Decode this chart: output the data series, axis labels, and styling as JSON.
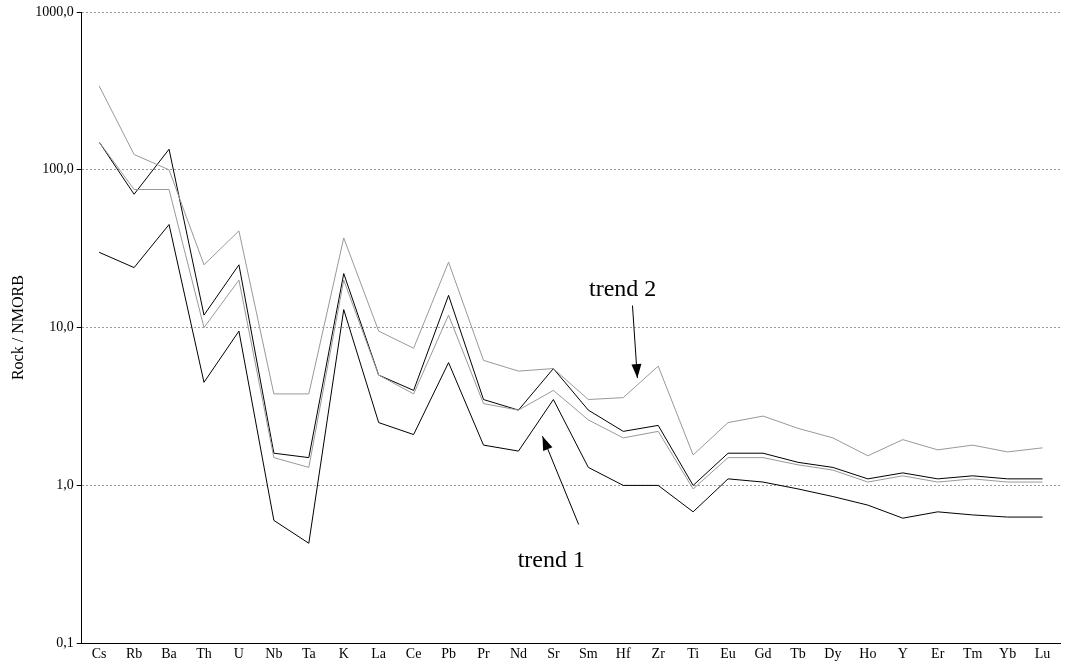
{
  "chart_data": {
    "type": "line",
    "ylabel": "Rock / NMORB",
    "categories": [
      "Cs",
      "Rb",
      "Ba",
      "Th",
      "U",
      "Nb",
      "Ta",
      "K",
      "La",
      "Ce",
      "Pb",
      "Pr",
      "Nd",
      "Sr",
      "Sm",
      "Hf",
      "Zr",
      "Ti",
      "Eu",
      "Gd",
      "Tb",
      "Dy",
      "Ho",
      "Y",
      "Er",
      "Tm",
      "Yb",
      "Lu"
    ],
    "series": [
      {
        "color": "#999999",
        "values": [
          340,
          125,
          100,
          25,
          41,
          3.8,
          3.8,
          37,
          9.5,
          7.4,
          26,
          6.2,
          5.3,
          5.5,
          3.5,
          3.6,
          5.7,
          1.56,
          2.5,
          2.75,
          2.3,
          2.0,
          1.54,
          1.95,
          1.68,
          1.8,
          1.63,
          1.73
        ]
      },
      {
        "color": "#999999",
        "values": [
          150,
          75,
          75,
          10,
          20,
          1.5,
          1.3,
          20,
          5,
          3.8,
          12,
          3.3,
          3.0,
          4.0,
          2.6,
          2.0,
          2.2,
          0.95,
          1.5,
          1.5,
          1.35,
          1.25,
          1.05,
          1.15,
          1.05,
          1.1,
          1.05,
          1.05
        ]
      },
      {
        "color": "#000000",
        "values": [
          150,
          70,
          135,
          12,
          25,
          1.6,
          1.5,
          22,
          5,
          4,
          16,
          3.5,
          3,
          5.5,
          3,
          2.2,
          2.4,
          1.0,
          1.6,
          1.6,
          1.4,
          1.3,
          1.1,
          1.2,
          1.1,
          1.15,
          1.1,
          1.1
        ]
      },
      {
        "color": "#000000",
        "values": [
          30,
          24,
          45,
          4.5,
          9.5,
          0.6,
          0.43,
          13,
          2.5,
          2.1,
          6,
          1.8,
          1.65,
          3.5,
          1.3,
          1.0,
          1.0,
          0.68,
          1.1,
          1.05,
          0.95,
          0.85,
          0.75,
          0.62,
          0.68,
          0.65,
          0.63,
          0.63
        ]
      }
    ],
    "log": "y",
    "ylim": [
      0.1,
      1000
    ],
    "yticks": [
      {
        "value": 0.1,
        "label": "0,1"
      },
      {
        "value": 1,
        "label": "1,0"
      },
      {
        "value": 10,
        "label": "10,0"
      },
      {
        "value": 100,
        "label": "100,0"
      },
      {
        "value": 1000,
        "label": "1000,0"
      }
    ],
    "grid": "y",
    "legend": false,
    "marker": "none",
    "line_style": "solid",
    "annotations": [
      "trend 2",
      "trend 1"
    ]
  }
}
